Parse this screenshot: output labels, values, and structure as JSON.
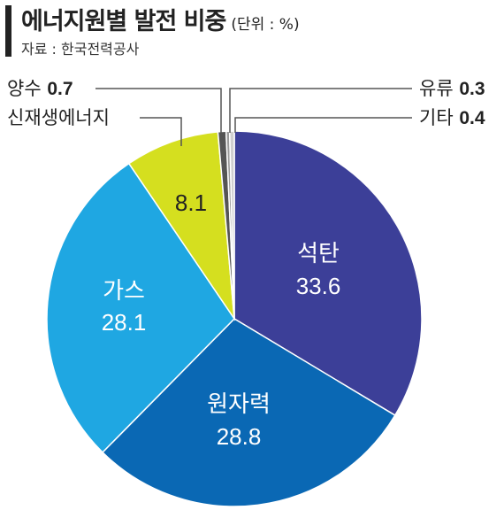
{
  "header": {
    "title": "에너지원별 발전 비중",
    "unit": "(단위 : %)",
    "source": "자료 : 한국전력공사"
  },
  "chart_data": {
    "type": "pie",
    "title": "에너지원별 발전 비중",
    "unit": "%",
    "slices": [
      {
        "label": "석탄",
        "value": 33.6,
        "color": "#3c3f98"
      },
      {
        "label": "원자력",
        "value": 28.8,
        "color": "#0a68b4"
      },
      {
        "label": "가스",
        "value": 28.1,
        "color": "#1fa7e2"
      },
      {
        "label": "신재생에너지",
        "value": 8.1,
        "color": "#d5df1f"
      },
      {
        "label": "양수",
        "value": 0.7,
        "color": "#555555"
      },
      {
        "label": "유류",
        "value": 0.3,
        "color": "#9a9a9a"
      },
      {
        "label": "기타",
        "value": 0.4,
        "color": "#cfcfcf"
      }
    ]
  },
  "labels": {
    "coal_name": "석탄",
    "coal_value": "33.6",
    "nuclear_name": "원자력",
    "nuclear_value": "28.8",
    "gas_name": "가스",
    "gas_value": "28.1",
    "renew_value": "8.1",
    "pumped_name": "양수",
    "pumped_value": "0.7",
    "renew_name": "신재생에너지",
    "oil_name": "유류",
    "oil_value": "0.3",
    "etc_name": "기타",
    "etc_value": "0.4"
  }
}
